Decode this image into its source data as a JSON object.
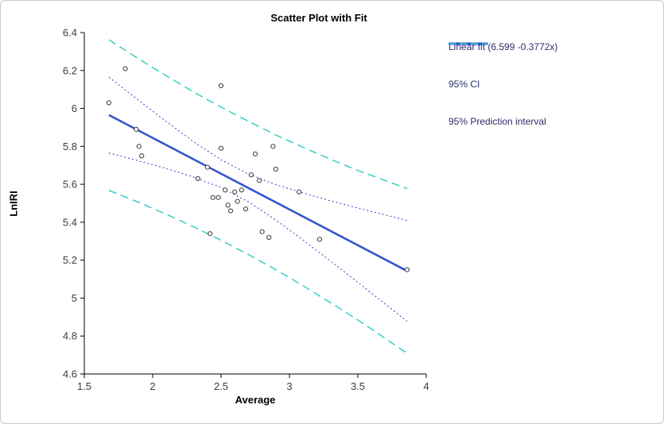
{
  "title": "Scatter Plot with Fit",
  "xlabel": "Average",
  "ylabel": "LnIRI",
  "legend": {
    "items": [
      {
        "label": "Linear fit (6.599  -0.3772x)",
        "style": "fit"
      },
      {
        "label": "95% CI",
        "style": "ci"
      },
      {
        "label": "95% Prediction interval",
        "style": "pi"
      }
    ]
  },
  "colors": {
    "fit": "#3355cc",
    "ci": "#3b3bd0",
    "pi": "#35cfc6",
    "point": "#3a3a3a",
    "axis": "#000000",
    "tick_text": "#3c3c3c"
  },
  "chart_data": {
    "type": "scatter",
    "title": "Scatter Plot with Fit",
    "xlabel": "Average",
    "ylabel": "LnIRI",
    "xlim": [
      1.5,
      4.0
    ],
    "ylim": [
      4.6,
      6.4
    ],
    "grid": false,
    "legend_position": "right",
    "xticks": [
      1.5,
      2.0,
      2.5,
      3.0,
      3.5,
      4.0
    ],
    "xtick_labels": [
      "1.5",
      "2",
      "2.5",
      "3",
      "3.5",
      "4"
    ],
    "yticks": [
      4.6,
      4.8,
      5.0,
      5.2,
      5.4,
      5.6,
      5.8,
      6.0,
      6.2,
      6.4
    ],
    "ytick_labels": [
      "4.6",
      "4.8",
      "5",
      "5.2",
      "5.4",
      "5.6",
      "5.8",
      "6",
      "6.2",
      "6.4"
    ],
    "points": [
      [
        1.68,
        6.03
      ],
      [
        1.8,
        6.21
      ],
      [
        1.88,
        5.89
      ],
      [
        1.9,
        5.8
      ],
      [
        1.92,
        5.75
      ],
      [
        2.33,
        5.63
      ],
      [
        2.4,
        5.69
      ],
      [
        2.42,
        5.34
      ],
      [
        2.44,
        5.53
      ],
      [
        2.48,
        5.53
      ],
      [
        2.5,
        6.12
      ],
      [
        2.5,
        5.79
      ],
      [
        2.53,
        5.57
      ],
      [
        2.55,
        5.49
      ],
      [
        2.57,
        5.46
      ],
      [
        2.6,
        5.56
      ],
      [
        2.62,
        5.51
      ],
      [
        2.65,
        5.57
      ],
      [
        2.68,
        5.47
      ],
      [
        2.72,
        5.65
      ],
      [
        2.75,
        5.76
      ],
      [
        2.78,
        5.62
      ],
      [
        2.8,
        5.35
      ],
      [
        2.85,
        5.32
      ],
      [
        2.88,
        5.8
      ],
      [
        2.9,
        5.68
      ],
      [
        3.07,
        5.56
      ],
      [
        3.22,
        5.31
      ],
      [
        3.86,
        5.15
      ]
    ],
    "fit": {
      "intercept": 6.599,
      "slope": -0.3772,
      "x_range": [
        1.68,
        3.86
      ]
    },
    "band_x": [
      1.68,
      1.9,
      2.1,
      2.3,
      2.5,
      2.7,
      2.9,
      3.1,
      3.3,
      3.5,
      3.7,
      3.86
    ],
    "ci_upper": [
      6.165,
      6.041,
      5.931,
      5.824,
      5.729,
      5.654,
      5.598,
      5.554,
      5.513,
      5.475,
      5.439,
      5.409
    ],
    "ci_lower": [
      5.765,
      5.723,
      5.683,
      5.638,
      5.583,
      5.508,
      5.412,
      5.306,
      5.195,
      5.083,
      4.969,
      4.877
    ],
    "pi_upper": [
      6.362,
      6.26,
      6.172,
      6.086,
      6.007,
      5.932,
      5.86,
      5.795,
      5.732,
      5.673,
      5.62,
      5.577
    ],
    "pi_lower": [
      5.568,
      5.504,
      5.442,
      5.376,
      5.305,
      5.23,
      5.15,
      5.065,
      4.976,
      4.885,
      4.788,
      4.709
    ]
  }
}
